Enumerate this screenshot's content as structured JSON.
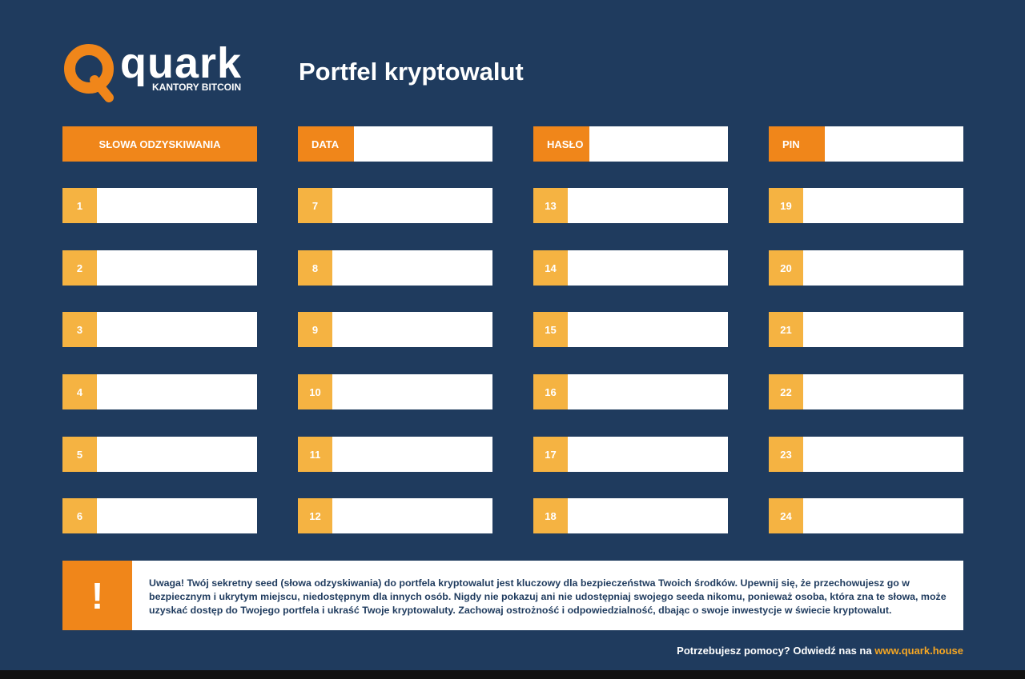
{
  "header": {
    "logo_text": "quark",
    "logo_subtitle": "KANTORY BITCOIN",
    "title": "Portfel kryptowalut"
  },
  "fields": [
    "SŁOWA ODZYSKIWANIA",
    "DATA",
    "HASŁO",
    "PIN"
  ],
  "words": [
    1,
    2,
    3,
    4,
    5,
    6,
    7,
    8,
    9,
    10,
    11,
    12,
    13,
    14,
    15,
    16,
    17,
    18,
    19,
    20,
    21,
    22,
    23,
    24
  ],
  "warning": {
    "icon": "!",
    "text": "Uwaga! Twój sekretny seed (słowa odzyskiwania) do portfela kryptowalut jest kluczowy dla bezpieczeństwa Twoich środków. Upewnij się, że przechowujesz go w bezpiecznym i ukrytym miejscu, niedostępnym dla innych osób. Nigdy nie pokazuj ani nie udostępniaj swojego seeda nikomu, ponieważ osoba, która zna te słowa, może uzyskać dostęp do Twojego portfela i ukraść Twoje kryptowaluty. Zachowaj ostrożność i odpowiedzialność, dbając o swoje inwestycje w świecie kryptowalut."
  },
  "footer": {
    "text": "Potrzebujesz pomocy? Odwiedź nas na",
    "link": "www.quark.house"
  }
}
